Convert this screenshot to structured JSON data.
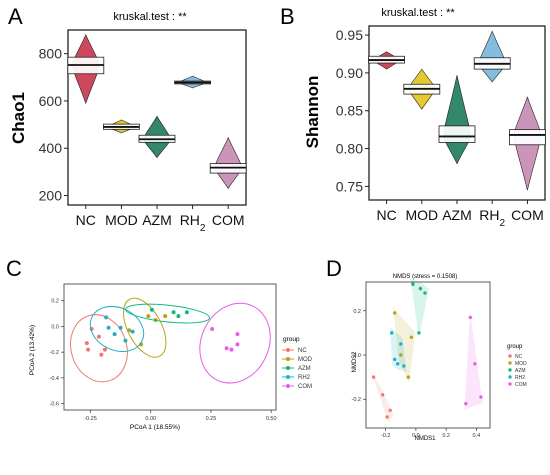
{
  "panels": {
    "A": {
      "letter": "A",
      "title": "kruskal.test : **",
      "ylabel": "Chao1",
      "categories": [
        "NC",
        "MOD",
        "AZM",
        "RH2",
        "COM"
      ],
      "yticks": [
        200,
        400,
        600,
        800
      ],
      "ylim": [
        160,
        900
      ],
      "colors": [
        "#c8344a",
        "#e3c21c",
        "#1d7a5c",
        "#78b6dc",
        "#c58ab2"
      ],
      "series": [
        {
          "name": "NC",
          "min": 590,
          "max": 880,
          "q1": 715,
          "median": 752,
          "q3": 785
        },
        {
          "name": "MOD",
          "min": 465,
          "max": 520,
          "q1": 480,
          "median": 490,
          "q3": 502
        },
        {
          "name": "AZM",
          "min": 360,
          "max": 535,
          "q1": 425,
          "median": 438,
          "q3": 455
        },
        {
          "name": "RH2",
          "min": 655,
          "max": 705,
          "q1": 672,
          "median": 678,
          "q3": 684
        },
        {
          "name": "COM",
          "min": 230,
          "max": 445,
          "q1": 295,
          "median": 318,
          "q3": 335
        }
      ]
    },
    "B": {
      "letter": "B",
      "title": "kruskal.test : **",
      "ylabel": "Shannon",
      "categories": [
        "NC",
        "MOD",
        "AZM",
        "RH2",
        "COM"
      ],
      "yticks": [
        0.75,
        0.8,
        0.85,
        0.9,
        0.95
      ],
      "ylim": [
        0.732,
        0.962
      ],
      "colors": [
        "#c8344a",
        "#e3c21c",
        "#1d7a5c",
        "#78b6dc",
        "#c58ab2"
      ],
      "series": [
        {
          "name": "NC",
          "min": 0.905,
          "max": 0.928,
          "q1": 0.913,
          "median": 0.917,
          "q3": 0.922
        },
        {
          "name": "MOD",
          "min": 0.852,
          "max": 0.905,
          "q1": 0.872,
          "median": 0.879,
          "q3": 0.885
        },
        {
          "name": "AZM",
          "min": 0.78,
          "max": 0.897,
          "q1": 0.808,
          "median": 0.816,
          "q3": 0.83
        },
        {
          "name": "RH2",
          "min": 0.888,
          "max": 0.955,
          "q1": 0.905,
          "median": 0.912,
          "q3": 0.92
        },
        {
          "name": "COM",
          "min": 0.745,
          "max": 0.868,
          "q1": 0.805,
          "median": 0.818,
          "q3": 0.825
        }
      ]
    },
    "C": {
      "letter": "C",
      "type": "scatter",
      "xlabel": "PCoA 1 (18.55%)",
      "ylabel": "PCoA 2 (13.42%)",
      "xlim": [
        -0.36,
        0.52
      ],
      "ylim": [
        -0.65,
        0.33
      ],
      "xticks": [
        -0.25,
        0.0,
        0.25,
        0.5
      ],
      "xtick_labels": [
        "-0.25",
        "0.00",
        "0.25",
        "0.50"
      ],
      "yticks": [
        -0.6,
        -0.4,
        -0.2,
        0.0,
        0.2
      ],
      "ytick_labels": [
        "-0.6",
        "-0.4",
        "-0.2",
        "0.0",
        "0.2"
      ],
      "legend_title": "group",
      "groups": [
        {
          "name": "NC",
          "color": "#f0796d",
          "points": [
            [
              -0.265,
              -0.13
            ],
            [
              -0.26,
              -0.18
            ],
            [
              -0.245,
              -0.02
            ],
            [
              -0.215,
              -0.08
            ],
            [
              -0.205,
              -0.22
            ],
            [
              -0.19,
              -0.18
            ]
          ],
          "ellipse": {
            "cx": -0.215,
            "cy": -0.17,
            "rx": 0.115,
            "ry": 0.265,
            "rot": 18
          }
        },
        {
          "name": "MOD",
          "color": "#b8a314",
          "points": [
            [
              -0.09,
              -0.03
            ],
            [
              -0.04,
              -0.14
            ],
            [
              -0.01,
              0.08
            ],
            [
              0.02,
              0.05
            ],
            [
              0.06,
              0.08
            ]
          ],
          "ellipse": {
            "cx": -0.025,
            "cy": -0.01,
            "rx": 0.07,
            "ry": 0.25,
            "rot": 28
          }
        },
        {
          "name": "AZM",
          "color": "#12b87f",
          "points": [
            [
              0.005,
              0.13
            ],
            [
              0.095,
              0.11
            ],
            [
              0.115,
              0.08
            ],
            [
              0.15,
              0.11
            ]
          ],
          "ellipse": {
            "cx": 0.07,
            "cy": 0.1,
            "rx": 0.175,
            "ry": 0.065,
            "rot": -6
          }
        },
        {
          "name": "RH2",
          "color": "#1fb2c6",
          "points": [
            [
              -0.185,
              0.07
            ],
            [
              -0.175,
              -0.01
            ],
            [
              -0.15,
              -0.06
            ],
            [
              -0.125,
              -0.01
            ],
            [
              -0.105,
              -0.11
            ],
            [
              -0.075,
              -0.04
            ]
          ],
          "ellipse": {
            "cx": -0.14,
            "cy": -0.02,
            "rx": 0.115,
            "ry": 0.165,
            "rot": -25
          }
        },
        {
          "name": "COM",
          "color": "#e55fe4",
          "points": [
            [
              0.255,
              -0.02
            ],
            [
              0.315,
              -0.17
            ],
            [
              0.335,
              -0.18
            ],
            [
              0.36,
              -0.14
            ],
            [
              0.36,
              -0.06
            ]
          ],
          "ellipse": {
            "cx": 0.35,
            "cy": -0.13,
            "rx": 0.14,
            "ry": 0.32,
            "rot": -25
          }
        }
      ]
    },
    "D": {
      "letter": "D",
      "type": "scatter",
      "title": "NMDS (stress = 0.1508)",
      "xlabel": "NMDS1",
      "ylabel": "NMDS2",
      "xlim": [
        -0.33,
        0.49
      ],
      "ylim": [
        -0.33,
        0.33
      ],
      "xticks": [
        -0.2,
        0.0,
        0.2,
        0.4
      ],
      "xtick_labels": [
        "-0.2",
        "0.0",
        "0.2",
        "0.4"
      ],
      "yticks": [
        -0.2,
        0.0,
        0.2
      ],
      "ytick_labels": [
        "-0.2",
        "0.0",
        "0.2"
      ],
      "legend_title": "group",
      "groups": [
        {
          "name": "NC",
          "color": "#f0796d",
          "points": [
            [
              -0.28,
              -0.1
            ],
            [
              -0.22,
              -0.18
            ],
            [
              -0.19,
              -0.28
            ],
            [
              -0.17,
              -0.25
            ]
          ]
        },
        {
          "name": "MOD",
          "color": "#b8a314",
          "points": [
            [
              -0.14,
              0.19
            ],
            [
              -0.1,
              0.0
            ],
            [
              -0.05,
              -0.1
            ],
            [
              -0.03,
              0.08
            ]
          ]
        },
        {
          "name": "AZM",
          "color": "#12b87f",
          "points": [
            [
              -0.02,
              0.32
            ],
            [
              0.02,
              0.1
            ],
            [
              0.03,
              0.3
            ],
            [
              0.06,
              0.28
            ]
          ]
        },
        {
          "name": "RH2",
          "color": "#1fb2c6",
          "points": [
            [
              -0.16,
              0.1
            ],
            [
              -0.14,
              -0.02
            ],
            [
              -0.12,
              -0.04
            ],
            [
              -0.1,
              0.05
            ],
            [
              -0.08,
              -0.05
            ]
          ]
        },
        {
          "name": "COM",
          "color": "#e55fe4",
          "points": [
            [
              0.33,
              -0.22
            ],
            [
              0.36,
              0.17
            ],
            [
              0.39,
              -0.04
            ],
            [
              0.43,
              -0.19
            ]
          ]
        }
      ]
    }
  },
  "chart_data": [
    {
      "type": "violin",
      "title": "kruskal.test : **",
      "ylabel": "Chao1",
      "categories": [
        "NC",
        "MOD",
        "AZM",
        "RH2",
        "COM"
      ],
      "medians": [
        752,
        490,
        438,
        678,
        318
      ],
      "ylim": [
        160,
        900
      ]
    },
    {
      "type": "violin",
      "title": "kruskal.test : **",
      "ylabel": "Shannon",
      "categories": [
        "NC",
        "MOD",
        "AZM",
        "RH2",
        "COM"
      ],
      "medians": [
        0.917,
        0.879,
        0.816,
        0.912,
        0.818
      ],
      "ylim": [
        0.732,
        0.962
      ]
    },
    {
      "type": "scatter",
      "xlabel": "PCoA 1 (18.55%)",
      "ylabel": "PCoA 2 (13.42%)",
      "series_names": [
        "NC",
        "MOD",
        "AZM",
        "RH2",
        "COM"
      ]
    },
    {
      "type": "scatter",
      "title": "NMDS (stress = 0.1508)",
      "xlabel": "NMDS1",
      "ylabel": "NMDS2",
      "series_names": [
        "NC",
        "MOD",
        "AZM",
        "RH2",
        "COM"
      ]
    }
  ]
}
